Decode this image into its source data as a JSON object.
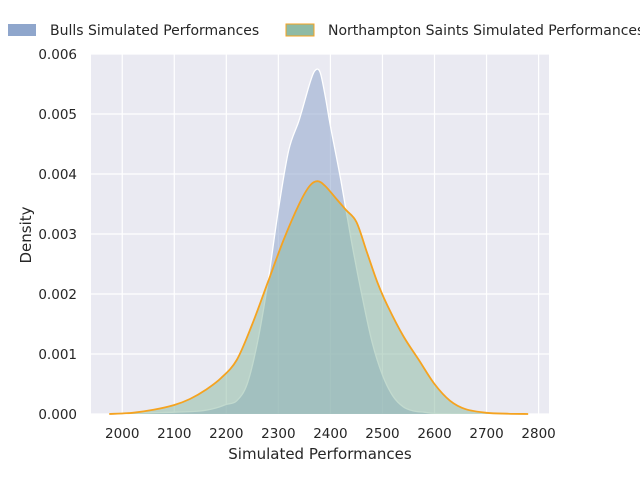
{
  "chart_data": {
    "type": "area",
    "title": "",
    "xlabel": "Simulated Performances",
    "ylabel": "Density",
    "xlim": [
      1940,
      2820
    ],
    "ylim": [
      0,
      0.006
    ],
    "x_ticks": [
      2000,
      2100,
      2200,
      2300,
      2400,
      2500,
      2600,
      2700,
      2800
    ],
    "y_ticks": [
      0,
      0.001,
      0.002,
      0.003,
      0.004,
      0.005,
      0.006
    ],
    "y_tick_labels": [
      "0.000",
      "0.001",
      "0.002",
      "0.003",
      "0.004",
      "0.005",
      "0.006"
    ],
    "grid": true,
    "legend_position": "top",
    "series": [
      {
        "name": "Bulls Simulated Performances",
        "fill_color": "#8fa6cc",
        "line_color": "#ffffff",
        "x": [
          1975,
          2050,
          2100,
          2150,
          2180,
          2200,
          2220,
          2240,
          2260,
          2280,
          2300,
          2320,
          2340,
          2360,
          2370,
          2380,
          2390,
          2400,
          2420,
          2440,
          2460,
          2480,
          2500,
          2520,
          2540,
          2560,
          2580,
          2600,
          2650
        ],
        "y": [
          0,
          2e-05,
          3e-05,
          5e-05,
          0.0001,
          0.00016,
          0.00022,
          0.0005,
          0.0012,
          0.0022,
          0.0034,
          0.0044,
          0.0049,
          0.0055,
          0.00572,
          0.0057,
          0.0053,
          0.0048,
          0.0039,
          0.0029,
          0.002,
          0.0012,
          0.00065,
          0.0003,
          0.00012,
          5e-05,
          3e-05,
          1e-05,
          0
        ]
      },
      {
        "name": "Northampton Saints Simulated Performances",
        "fill_color": "#8fbba5",
        "line_color": "#f5a320",
        "x": [
          1975,
          2020,
          2060,
          2100,
          2130,
          2160,
          2190,
          2220,
          2250,
          2280,
          2310,
          2340,
          2360,
          2375,
          2390,
          2410,
          2430,
          2450,
          2470,
          2490,
          2510,
          2540,
          2570,
          2600,
          2630,
          2660,
          2700,
          2740,
          2780
        ],
        "y": [
          0,
          2e-05,
          7e-05,
          0.00015,
          0.00025,
          0.0004,
          0.0006,
          0.0009,
          0.0015,
          0.0022,
          0.0029,
          0.0035,
          0.0038,
          0.00388,
          0.0038,
          0.0036,
          0.0034,
          0.0032,
          0.0027,
          0.0022,
          0.0018,
          0.0013,
          0.0009,
          0.0005,
          0.00022,
          8e-05,
          2e-05,
          5e-06,
          0
        ]
      }
    ]
  }
}
